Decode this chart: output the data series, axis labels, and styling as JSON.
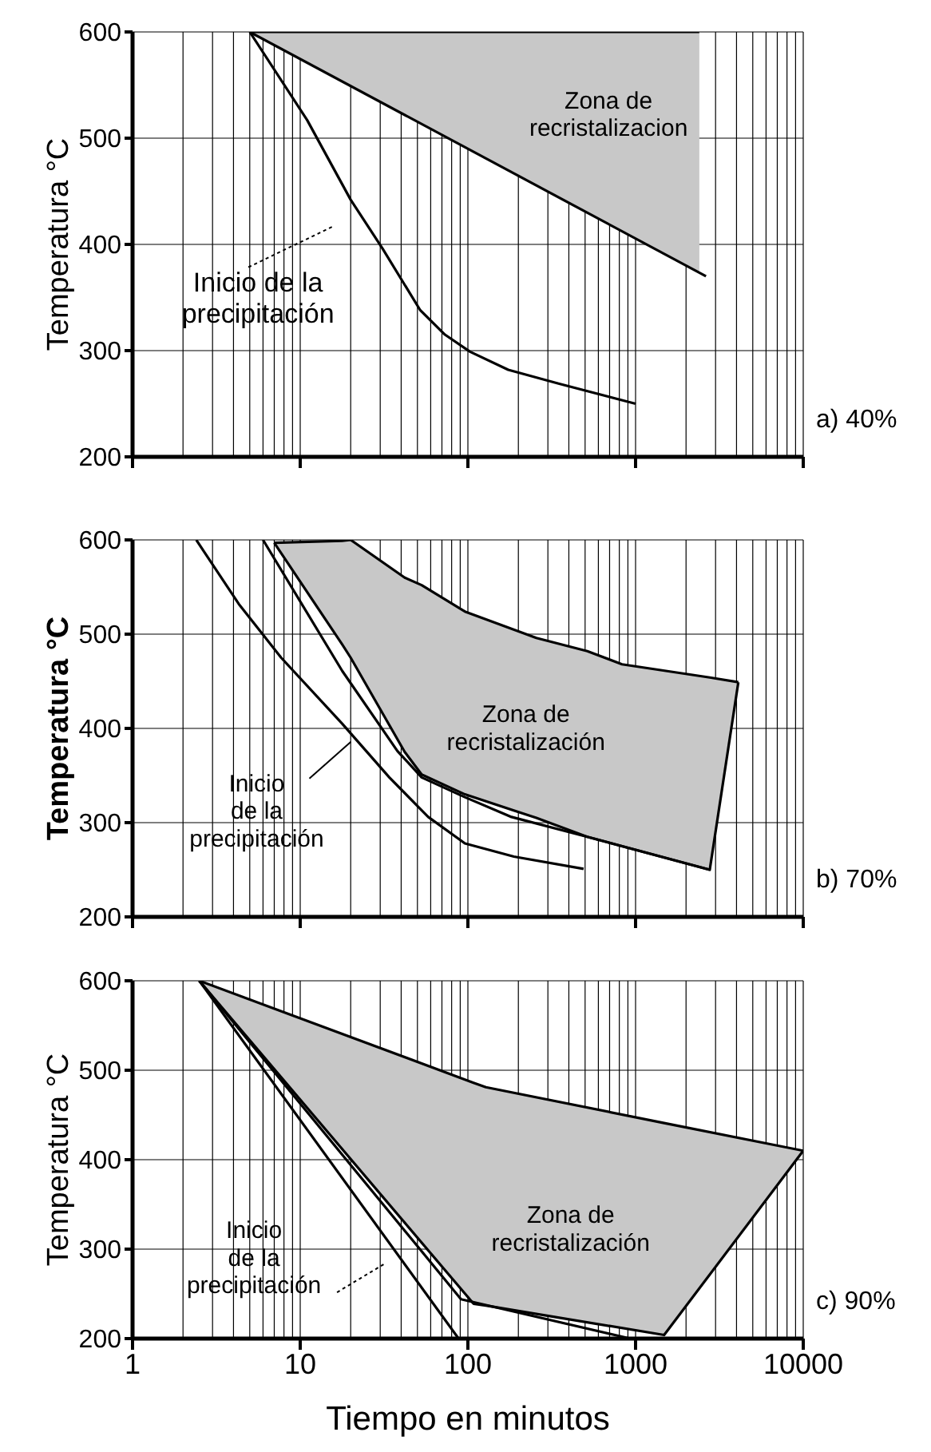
{
  "chart_data": [
    {
      "type": "line",
      "ylabel": "Temperatura °C",
      "xlim": [
        1,
        10000
      ],
      "xticks": [
        1,
        10,
        100,
        1000,
        10000
      ],
      "ylim": [
        200,
        600
      ],
      "yticks": [
        200,
        300,
        400,
        500,
        600
      ],
      "log": "x",
      "grid": true,
      "tick_labels": "y",
      "series": [
        {
          "color": "#000000",
          "x": [
            5,
            2400
          ],
          "values": [
            600,
            600
          ],
          "lower": [
            600,
            373
          ],
          "upper": [
            600,
            600
          ]
        },
        {
          "color": "#000000",
          "x": [
            5,
            2630
          ],
          "values": [
            600,
            370
          ]
        },
        {
          "color": "#000000",
          "x": [
            5,
            11,
            20,
            31,
            52,
            73,
            103,
            174,
            347,
            1000
          ],
          "values": [
            600,
            517,
            442,
            396,
            338,
            315,
            299,
            282,
            269,
            250
          ]
        }
      ],
      "annotations": [
        "Zona de\nrecristalizacion",
        "Inicio de la\nprecipitación",
        "a) 40%"
      ]
    },
    {
      "type": "line",
      "ylabel": "Temperatura °C",
      "xlim": [
        1,
        10000
      ],
      "xticks": [
        1,
        10,
        100,
        1000,
        10000
      ],
      "ylim": [
        200,
        600
      ],
      "yticks": [
        200,
        300,
        400,
        500,
        600
      ],
      "log": "x",
      "grid": true,
      "tick_labels": "y",
      "series": [
        {
          "color": "#000000",
          "x": [
            7,
            17.8,
            20,
            42,
            53,
            96,
            256,
            515,
            830,
            2770,
            4100
          ],
          "values": [
            597,
            599,
            600,
            560,
            552,
            524,
            496,
            482,
            468,
            454,
            449
          ],
          "lower": [
            597,
            489,
            475,
            375,
            351,
            330,
            305,
            285,
            275,
            250,
            449
          ],
          "upper": [
            597,
            599,
            600,
            560,
            552,
            524,
            496,
            482,
            468,
            454,
            449
          ]
        },
        {
          "color": "#000000",
          "x": [
            7,
            17.8,
            20,
            42,
            53,
            96,
            256,
            515,
            830,
            2770,
            4100
          ],
          "values": [
            597,
            489,
            475,
            375,
            351,
            330,
            305,
            285,
            275,
            250,
            449
          ]
        },
        {
          "color": "#000000",
          "x": [
            2.4,
            4.3,
            7.7,
            17.8,
            34,
            58,
            96,
            188,
            490
          ],
          "values": [
            600,
            532,
            475,
            405,
            348,
            306,
            278,
            264,
            251
          ]
        },
        {
          "color": "#000000",
          "x": [
            6,
            17.8,
            38,
            53,
            96,
            182,
            515,
            2770
          ],
          "values": [
            600,
            461,
            376,
            348,
            327,
            306,
            285,
            250
          ]
        }
      ],
      "annotations": [
        "Zona de\nrecristalización",
        "Inicio\nde la\nprecipitación",
        "b) 70%"
      ]
    },
    {
      "type": "line",
      "xlabel": "Tiempo en minutos",
      "ylabel": "Temperatura °C",
      "xlim": [
        1,
        10000
      ],
      "xticks": [
        1,
        10,
        100,
        1000,
        10000
      ],
      "ylim": [
        200,
        600
      ],
      "yticks": [
        200,
        300,
        400,
        500,
        600
      ],
      "log": "x",
      "grid": true,
      "series": [
        {
          "color": "#000000",
          "x": [
            2.5,
            108,
            128,
            1480,
            10000
          ],
          "values": [
            600,
            486,
            481,
            441,
            410
          ],
          "lower": [
            600,
            239,
            237,
            204,
            410
          ],
          "upper": [
            600,
            486,
            481,
            441,
            410
          ]
        },
        {
          "color": "#000000",
          "x": [
            2.5,
            108,
            128,
            1480,
            10000
          ],
          "values": [
            600,
            239,
            237,
            204,
            410
          ]
        },
        {
          "color": "#000000",
          "x": [
            2.5,
            88
          ],
          "values": [
            600,
            200
          ]
        },
        {
          "color": "#000000",
          "x": [
            2.5,
            91,
            930
          ],
          "values": [
            600,
            244,
            200
          ]
        }
      ],
      "annotations": [
        "Zona de\nrecristalización",
        "Inicio\nde la\nprecipitación",
        "c) 90%"
      ]
    }
  ]
}
